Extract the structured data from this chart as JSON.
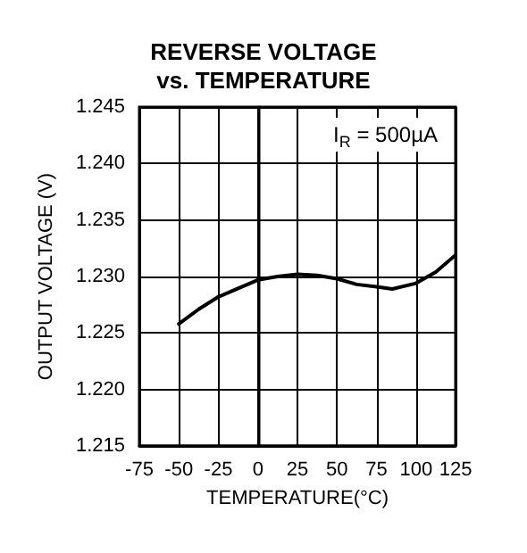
{
  "chart_data": {
    "type": "line",
    "title": "REVERSE VOLTAGE\nvs. TEMPERATURE",
    "xlabel": "TEMPERATURE(°C)",
    "ylabel": "OUTPUT VOLTAGE (V)",
    "annotations": [
      "I$_{R}$ = 500µA"
    ],
    "x": [
      -50,
      -37.5,
      -25,
      0,
      12.5,
      25,
      37.5,
      50,
      62.5,
      75,
      85,
      100,
      112.5,
      125
    ],
    "series": [
      {
        "color": "#000000",
        "values": [
          1.2258,
          1.2271,
          1.2282,
          1.2297,
          1.23,
          1.2302,
          1.2301,
          1.2298,
          1.2293,
          1.2291,
          1.2289,
          1.2294,
          1.2304,
          1.2319
        ]
      }
    ],
    "xlim": [
      -75,
      125
    ],
    "xticks": [
      -75,
      -50,
      -25,
      0,
      25,
      50,
      75,
      100,
      125
    ],
    "ylim": [
      1.215,
      1.245
    ],
    "yticks": [
      {
        "value": 1.215,
        "label": "1.215"
      },
      {
        "value": 1.22,
        "label": "1.220"
      },
      {
        "value": 1.225,
        "label": "1.225"
      },
      {
        "value": 1.23,
        "label": "1.230"
      },
      {
        "value": 1.235,
        "label": "1.235"
      },
      {
        "value": 1.24,
        "label": "1.240"
      },
      {
        "value": 1.245,
        "label": "1.245"
      }
    ],
    "grid": true,
    "marker": "none",
    "line_style": "solid"
  }
}
